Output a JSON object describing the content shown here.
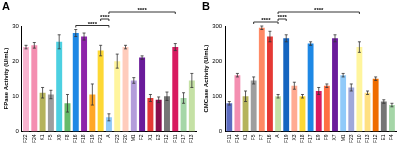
{
  "chart_data": [
    {
      "type": "bar",
      "title": "A",
      "y_label": "FPase Activity (U/mL)",
      "categories": [
        "F22",
        "F24",
        "K1",
        "F5",
        "X9",
        "F8",
        "F16",
        "F18",
        "F19",
        "F21",
        "A",
        "F23",
        "F20",
        "M1",
        "F2",
        "X1",
        "E3",
        "F12",
        "F11",
        "F17",
        "F13"
      ],
      "values": [
        24,
        24.5,
        11,
        10.5,
        25.5,
        8,
        28,
        27,
        10.5,
        23,
        4,
        20,
        24,
        14.5,
        21,
        9.5,
        9,
        10,
        24,
        9.5,
        14.5
      ],
      "errors": [
        0.5,
        0.8,
        1.5,
        1.2,
        2,
        2.5,
        1,
        1,
        3,
        1.5,
        1,
        2,
        0.5,
        0.8,
        0.5,
        1,
        0.8,
        1.2,
        1,
        1.5,
        2
      ],
      "colors": [
        "#f9b4cf",
        "#f48fb1",
        "#b5b35c",
        "#9e9e9e",
        "#4dd0e1",
        "#66bb6a",
        "#1e88e5",
        "#8e24aa",
        "#ffa726",
        "#fdd835",
        "#90caf9",
        "#fff59d",
        "#ffccbc",
        "#b39ddb",
        "#6a1b9a",
        "#e53935",
        "#880e4f",
        "#757575",
        "#d81b60",
        "#a5d6a7",
        "#c5e1a5"
      ],
      "ylim": [
        0,
        30
      ],
      "yticks": [
        0,
        10,
        20,
        30
      ],
      "grid": false,
      "annotations": [
        {
          "text": "****",
          "between": [
            "F16",
            "A"
          ]
        },
        {
          "text": "****",
          "between": [
            "F21",
            "A"
          ]
        },
        {
          "text": "****",
          "between": [
            "A",
            "F11"
          ]
        }
      ]
    },
    {
      "type": "bar",
      "title": "B",
      "y_label": "CMCase Activity (U/mL)",
      "categories": [
        "F11",
        "F14",
        "K1",
        "F5",
        "F7",
        "F16",
        "A",
        "F19",
        "X3",
        "F18",
        "F17",
        "E9",
        "F9",
        "X7",
        "M1",
        "F23",
        "F10",
        "F13",
        "F12",
        "E1",
        "F4"
      ],
      "values": [
        80,
        160,
        100,
        145,
        295,
        270,
        100,
        265,
        130,
        100,
        250,
        115,
        130,
        265,
        160,
        125,
        240,
        110,
        150,
        85,
        75
      ],
      "errors": [
        5,
        5,
        15,
        10,
        5,
        15,
        5,
        10,
        10,
        5,
        5,
        10,
        5,
        10,
        5,
        10,
        15,
        5,
        5,
        5,
        5
      ],
      "colors": [
        "#5c6bc0",
        "#f48fb1",
        "#b5b35c",
        "#9e9e9e",
        "#ff8a65",
        "#e53935",
        "#c5e1a5",
        "#1565c0",
        "#ffab91",
        "#fdd835",
        "#1e88e5",
        "#d81b60",
        "#ff7043",
        "#6a1b9a",
        "#90caf9",
        "#9fa8da",
        "#fff59d",
        "#ffe082",
        "#ef6c00",
        "#757575",
        "#a5d6a7"
      ],
      "ylim": [
        0,
        300
      ],
      "yticks": [
        0,
        100,
        200,
        300
      ],
      "grid": false,
      "annotations": [
        {
          "text": "****",
          "between": [
            "F5",
            "A"
          ]
        },
        {
          "text": "****",
          "between": [
            "A",
            "F19"
          ]
        },
        {
          "text": "****",
          "between": [
            "A",
            "F10"
          ]
        }
      ]
    }
  ]
}
